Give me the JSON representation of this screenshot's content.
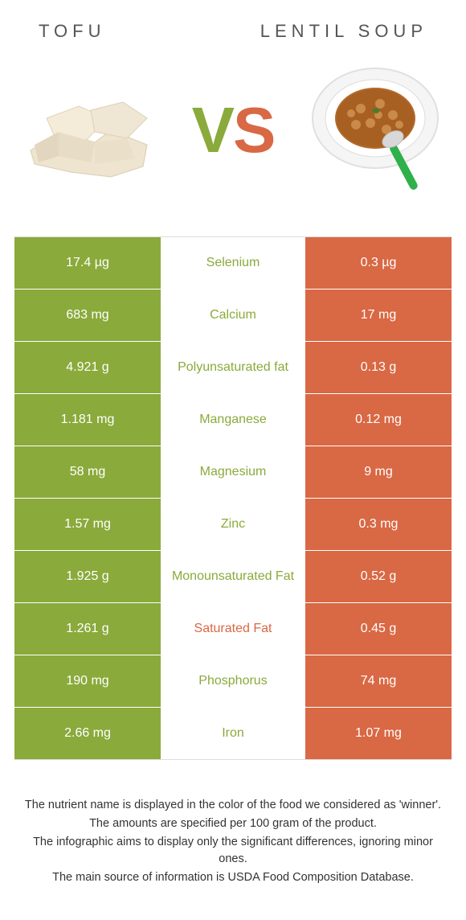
{
  "header": {
    "left_title": "Tofu",
    "right_title": "Lentil soup"
  },
  "vs": {
    "v": "V",
    "s": "S"
  },
  "colors": {
    "left": "#8aaa3b",
    "right": "#d96844",
    "row_border": "#ffffff",
    "table_border": "#dddddd",
    "text": "#333333"
  },
  "rows": [
    {
      "nutrient": "Selenium",
      "left": "17.4 µg",
      "right": "0.3 µg",
      "winner": "left"
    },
    {
      "nutrient": "Calcium",
      "left": "683 mg",
      "right": "17 mg",
      "winner": "left"
    },
    {
      "nutrient": "Polyunsaturated fat",
      "left": "4.921 g",
      "right": "0.13 g",
      "winner": "left"
    },
    {
      "nutrient": "Manganese",
      "left": "1.181 mg",
      "right": "0.12 mg",
      "winner": "left"
    },
    {
      "nutrient": "Magnesium",
      "left": "58 mg",
      "right": "9 mg",
      "winner": "left"
    },
    {
      "nutrient": "Zinc",
      "left": "1.57 mg",
      "right": "0.3 mg",
      "winner": "left"
    },
    {
      "nutrient": "Monounsaturated Fat",
      "left": "1.925 g",
      "right": "0.52 g",
      "winner": "left"
    },
    {
      "nutrient": "Saturated Fat",
      "left": "1.261 g",
      "right": "0.45 g",
      "winner": "right"
    },
    {
      "nutrient": "Phosphorus",
      "left": "190 mg",
      "right": "74 mg",
      "winner": "left"
    },
    {
      "nutrient": "Iron",
      "left": "2.66 mg",
      "right": "1.07 mg",
      "winner": "left"
    }
  ],
  "notes": [
    "The nutrient name is displayed in the color of the food we considered as 'winner'.",
    "The amounts are specified per 100 gram of the product.",
    "The infographic aims to display only the significant differences, ignoring minor ones.",
    "The main source of information is USDA Food Composition Database."
  ]
}
